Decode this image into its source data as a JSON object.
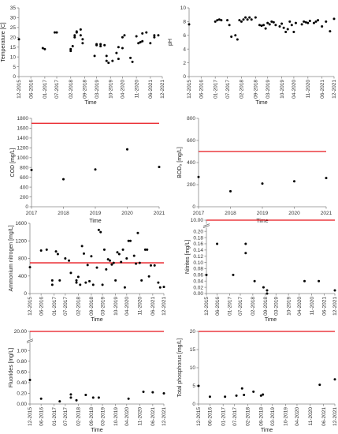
{
  "chart_data": [
    {
      "type": "scatter",
      "y_label": "Temperature [C]",
      "x_label": "Time",
      "color": "#000000",
      "xticks": [
        "12-2015",
        "06-2016",
        "01-2017",
        "07-2017",
        "02-2018",
        "09-2018",
        "03-2019",
        "10-2019",
        "04-2020",
        "11-2020",
        "06-2021",
        "12-2021"
      ],
      "ylim": [
        0,
        35
      ],
      "yticks": [
        0,
        5,
        10,
        15,
        20,
        25,
        30,
        35
      ],
      "x": [
        "12-2015",
        "12-2016",
        "01-2017",
        "06-2017",
        "07-2017",
        "02-2018",
        "02-2018",
        "03-2018",
        "04-2018",
        "04-2018",
        "05-2018",
        "05-2018",
        "07-2018",
        "07-2018",
        "08-2018",
        "08-2018",
        "02-2019",
        "03-2019",
        "03-2019",
        "05-2019",
        "05-2019",
        "07-2019",
        "08-2019",
        "08-2019",
        "09-2019",
        "11-2019",
        "01-2020",
        "02-2020",
        "02-2020",
        "04-2020",
        "04-2020",
        "05-2020",
        "08-2020",
        "09-2020",
        "11-2020",
        "12-2020",
        "01-2021",
        "02-2021",
        "02-2021",
        "04-2021",
        "06-2021",
        "08-2021",
        "08-2021",
        "10-2021"
      ],
      "values": [
        19,
        14.5,
        14,
        22.5,
        22.5,
        14,
        13,
        15.5,
        20,
        21,
        22.5,
        23,
        21,
        24,
        19,
        17,
        10.5,
        16,
        16.5,
        16.5,
        15.5,
        16,
        10.5,
        8,
        7,
        8,
        12,
        9,
        15,
        20,
        14.5,
        21,
        9.5,
        7.5,
        20.5,
        17,
        17.5,
        22,
        18,
        22.5,
        17,
        21,
        20,
        21
      ]
    },
    {
      "type": "scatter",
      "y_label": "pH",
      "x_label": "Time",
      "color": "#000000",
      "xticks": [
        "12-2015",
        "06-2016",
        "01-2017",
        "07-2017",
        "02-2018",
        "09-2018",
        "03-2019",
        "10-2019",
        "04-2020",
        "11-2020",
        "06-2021",
        "12-2021"
      ],
      "ylim": [
        0,
        10
      ],
      "yticks": [
        0,
        2,
        4,
        6,
        8,
        10
      ],
      "x": [
        "12-2015",
        "01-2017",
        "02-2017",
        "03-2017",
        "04-2017",
        "07-2017",
        "08-2017",
        "09-2017",
        "11-2017",
        "12-2017",
        "01-2018",
        "02-2018",
        "03-2018",
        "04-2018",
        "05-2018",
        "06-2018",
        "07-2018",
        "09-2018",
        "11-2018",
        "12-2018",
        "01-2019",
        "02-2019",
        "03-2019",
        "04-2019",
        "05-2019",
        "06-2019",
        "07-2019",
        "09-2019",
        "10-2019",
        "11-2019",
        "12-2019",
        "01-2020",
        "02-2020",
        "03-2020",
        "04-2020",
        "05-2020",
        "08-2020",
        "09-2020",
        "10-2020",
        "11-2020",
        "12-2020",
        "02-2021",
        "03-2021",
        "04-2021",
        "06-2021",
        "08-2021",
        "10-2021",
        "12-2021"
      ],
      "values": [
        7.6,
        8.0,
        8.2,
        8.3,
        8.2,
        8.2,
        7.5,
        5.8,
        6.0,
        5.4,
        8.2,
        8.0,
        8.3,
        8.6,
        8.3,
        8.6,
        8.3,
        8.6,
        7.5,
        7.4,
        7.5,
        7.0,
        7.8,
        7.6,
        8.0,
        7.9,
        7.5,
        7.3,
        7.7,
        7.1,
        6.5,
        6.9,
        8.0,
        7.5,
        6.5,
        7.8,
        7.6,
        8.0,
        7.9,
        7.8,
        8.1,
        7.8,
        8.0,
        8.2,
        7.3,
        8.0,
        6.6,
        8.4
      ]
    },
    {
      "type": "scatter",
      "y_label": "COD [mg/L]",
      "x_label": "Time",
      "color": "#000000",
      "limit": 1700,
      "limit_color": "#e8141b",
      "xlim": [
        2017,
        2021
      ],
      "xticks": [
        2017,
        2018,
        2019,
        2020,
        2021
      ],
      "ylim": [
        0,
        1800
      ],
      "yticks": [
        0,
        200,
        400,
        600,
        800,
        1000,
        1200,
        1400,
        1600,
        1800
      ],
      "x": [
        2017,
        2018,
        2019,
        2020,
        2021
      ],
      "values": [
        750,
        560,
        760,
        1170,
        810
      ]
    },
    {
      "type": "scatter",
      "y_label": "BOD₅ [mg/L]",
      "x_label": "Time",
      "color": "#000000",
      "limit": 500,
      "limit_color": "#e8141b",
      "xlim": [
        2017,
        2021
      ],
      "xticks": [
        2017,
        2018,
        2019,
        2020,
        2021
      ],
      "ylim": [
        0,
        800
      ],
      "yticks": [
        0,
        200,
        400,
        600,
        800
      ],
      "x": [
        2017,
        2018,
        2019,
        2020,
        2021
      ],
      "values": [
        270,
        140,
        210,
        230,
        260
      ]
    },
    {
      "type": "scatter",
      "y_label": "Ammonium nitrogen [mg/L]",
      "x_label": "Time",
      "color": "#000000",
      "limit": 700,
      "limit_color": "#e8141b",
      "xticks": [
        "12-2015",
        "06-2016",
        "01-2017",
        "07-2017",
        "02-2018",
        "09-2018",
        "03-2019",
        "10-2019",
        "04-2020",
        "11-2020",
        "06-2021",
        "12-2021"
      ],
      "ylim": [
        0,
        1600
      ],
      "yticks": [
        0,
        400,
        800,
        1200,
        1600
      ],
      "x": [
        "12-2015",
        "06-2016",
        "09-2016",
        "12-2016",
        "12-2016",
        "02-2017",
        "03-2017",
        "04-2017",
        "07-2017",
        "09-2017",
        "10-2017",
        "01-2018",
        "01-2018",
        "02-2018",
        "03-2018",
        "04-2018",
        "05-2018",
        "06-2018",
        "07-2018",
        "08-2018",
        "09-2018",
        "10-2018",
        "12-2018",
        "01-2019",
        "02-2019",
        "03-2019",
        "04-2019",
        "05-2019",
        "06-2019",
        "07-2019",
        "08-2019",
        "09-2019",
        "10-2019",
        "11-2019",
        "12-2019",
        "01-2020",
        "02-2020",
        "03-2020",
        "04-2020",
        "05-2020",
        "06-2020",
        "08-2020",
        "09-2020",
        "10-2020",
        "11-2020",
        "12-2020",
        "02-2021",
        "03-2021",
        "04-2021",
        "05-2021",
        "07-2021",
        "09-2021",
        "10-2021",
        "12-2021"
      ],
      "values": [
        600,
        980,
        1000,
        200,
        300,
        960,
        900,
        300,
        800,
        750,
        470,
        250,
        300,
        380,
        200,
        1080,
        910,
        250,
        650,
        280,
        850,
        200,
        590,
        1450,
        1400,
        200,
        1000,
        550,
        780,
        750,
        660,
        700,
        300,
        940,
        900,
        720,
        1000,
        140,
        800,
        1200,
        1200,
        860,
        680,
        1380,
        700,
        300,
        1000,
        1000,
        390,
        640,
        640,
        250,
        140,
        150
      ]
    },
    {
      "type": "scatter",
      "y_label": "Nitrites [mg/L]",
      "x_label": "Time",
      "color": "#000000",
      "limit": 10,
      "limit_color": "#e8141b",
      "broken_axis": true,
      "xticks": [
        "12-2015",
        "06-2016",
        "01-2017",
        "07-2017",
        "02-2018",
        "09-2018",
        "03-2019",
        "10-2019",
        "04-2020",
        "11-2020",
        "06-2021",
        "12-2021"
      ],
      "ylim": [
        0,
        10
      ],
      "yticks": [
        {
          "value": 0,
          "label": "0.00"
        },
        {
          "value": 0.02,
          "label": "0.02"
        },
        {
          "value": 0.04,
          "label": "0.04"
        },
        {
          "value": 0.06,
          "label": "0.06"
        },
        {
          "value": 0.08,
          "label": "0.08"
        },
        {
          "value": 0.1,
          "label": "0.10"
        },
        {
          "value": 0.12,
          "label": "0.12"
        },
        {
          "value": 0.14,
          "label": "0.14"
        },
        {
          "value": 0.16,
          "label": "0.16"
        },
        {
          "value": 0.18,
          "label": "0.18"
        },
        {
          "value": 0.2,
          "label": "0.20"
        },
        {
          "value": 10,
          "label": "10.00"
        }
      ],
      "x": [
        "12-2015",
        "06-2016",
        "03-2017",
        "10-2017",
        "10-2017",
        "03-2018",
        "08-2018",
        "10-2018",
        "10-2018",
        "07-2020",
        "03-2021",
        "12-2021"
      ],
      "values": [
        0.06,
        0.16,
        0.06,
        0.16,
        0.13,
        0.04,
        0.02,
        0.01,
        0,
        0.04,
        0.04,
        0.01
      ]
    },
    {
      "type": "scatter",
      "y_label": "Fluorides [mg/L]",
      "x_label": "Time",
      "color": "#000000",
      "limit": 20,
      "limit_color": "#e8141b",
      "broken_axis": true,
      "xticks": [
        "12-2015",
        "06-2016",
        "01-2017",
        "07-2017",
        "02-2018",
        "09-2018",
        "03-2019",
        "10-2019",
        "04-2020",
        "11-2020",
        "06-2021",
        "12-2021"
      ],
      "ylim": [
        0,
        20
      ],
      "yticks": [
        {
          "value": 0,
          "label": "0.00"
        },
        {
          "value": 0.2,
          "label": "0.20"
        },
        {
          "value": 0.4,
          "label": "0.40"
        },
        {
          "value": 0.6,
          "label": "0.60"
        },
        {
          "value": 0.8,
          "label": "0.80"
        },
        {
          "value": 1,
          "label": "1.00"
        },
        {
          "value": 20,
          "label": "20.00"
        }
      ],
      "x": [
        "12-2015",
        "06-2016",
        "04-2017",
        "10-2017",
        "10-2017",
        "01-2018",
        "06-2018",
        "10-2018",
        "01-2019",
        "05-2020",
        "01-2021",
        "06-2021",
        "12-2021"
      ],
      "values": [
        0.45,
        0.1,
        0.05,
        0.18,
        0.12,
        0.07,
        0.17,
        0.12,
        0.12,
        0.1,
        0.23,
        0.22,
        0.2
      ]
    },
    {
      "type": "scatter",
      "y_label": "Total phosphorus [mg/L]",
      "x_label": "Time",
      "color": "#000000",
      "limit": 20,
      "limit_color": "#e8141b",
      "xticks": [
        "12-2015",
        "06-2016",
        "01-2017",
        "07-2017",
        "02-2018",
        "09-2018",
        "03-2019",
        "10-2019",
        "04-2020",
        "11-2020",
        "06-2021",
        "12-2021"
      ],
      "ylim": [
        0,
        20
      ],
      "yticks": [
        0,
        5,
        10,
        15,
        20
      ],
      "x": [
        "12-2015",
        "06-2016",
        "02-2017",
        "08-2017",
        "11-2017",
        "12-2017",
        "05-2018",
        "09-2018",
        "10-2018",
        "04-2021",
        "12-2021"
      ],
      "values": [
        5,
        2,
        2,
        2.3,
        4.3,
        2.5,
        3.4,
        2.3,
        2.6,
        5.3,
        6.8
      ]
    }
  ]
}
